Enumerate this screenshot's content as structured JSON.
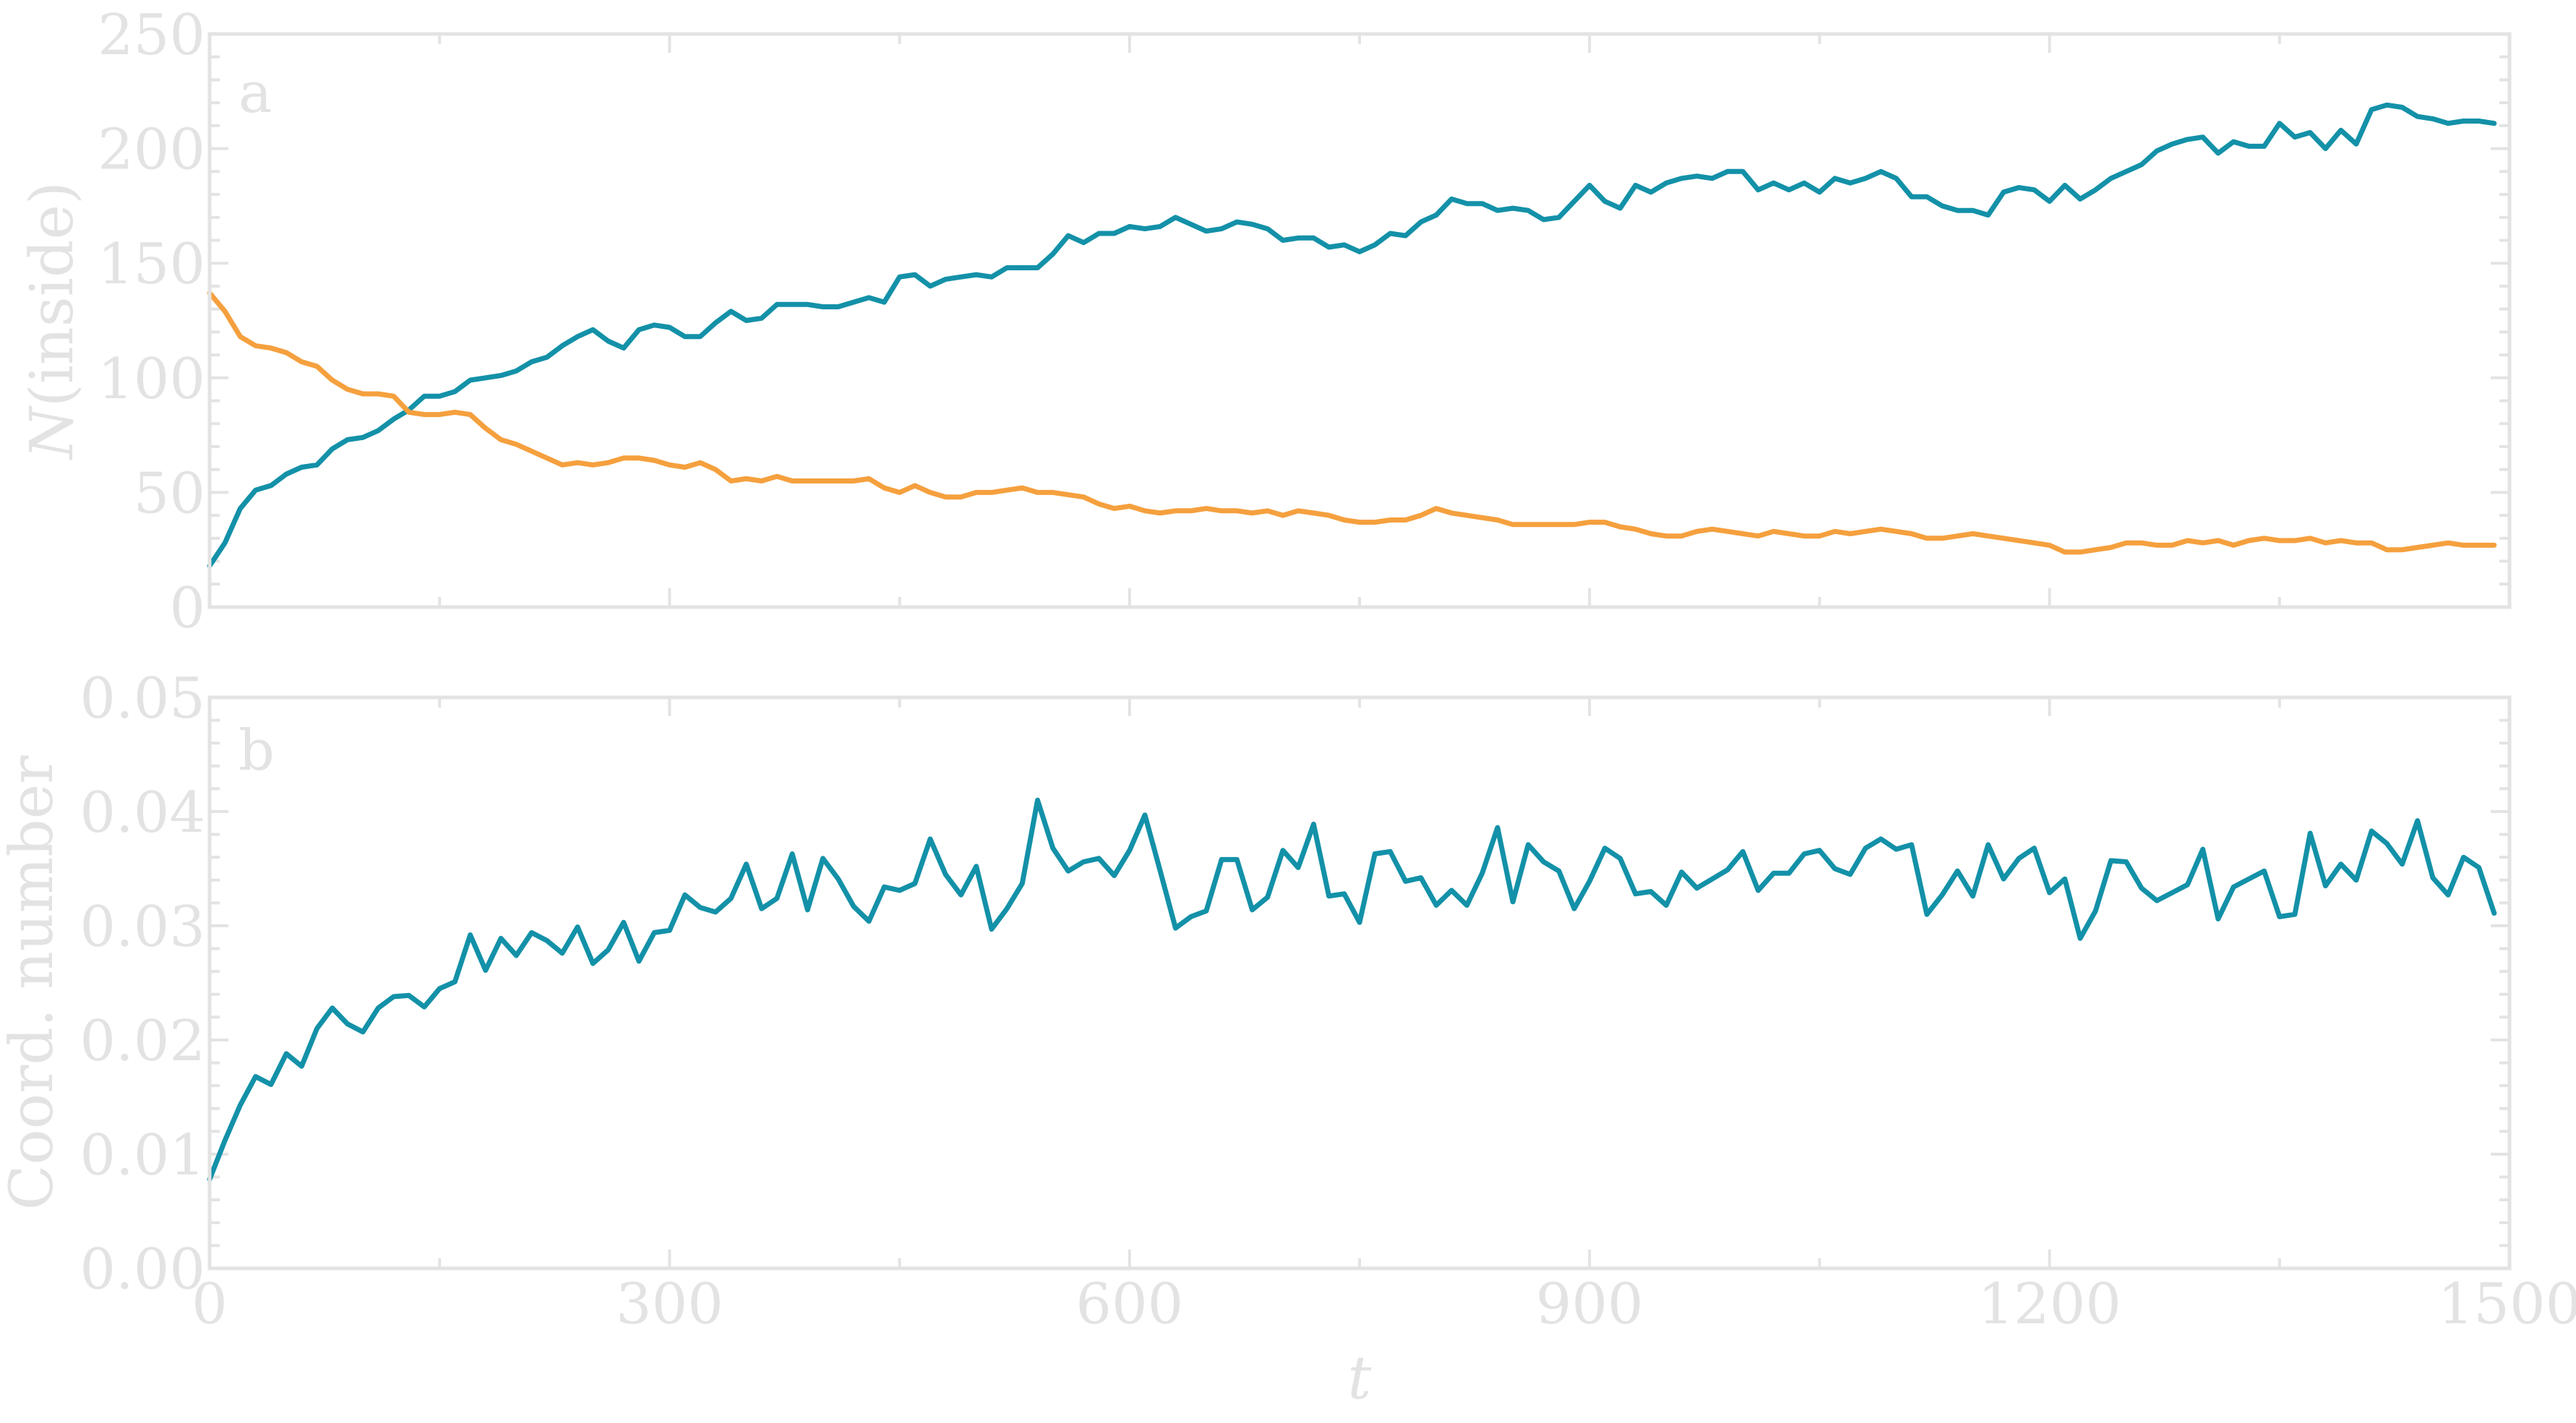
{
  "colors": {
    "axis": "#e3e3e3",
    "teal": "#1391a8",
    "orange": "#f5a03e"
  },
  "chart_data": [
    {
      "panel": "a",
      "type": "line",
      "xlabel": "",
      "ylabel": "N(inside)",
      "xlim": [
        0,
        1500
      ],
      "ylim": [
        0,
        250
      ],
      "xticks": [
        0,
        300,
        600,
        900,
        1200,
        1500
      ],
      "yticks": [
        0,
        50,
        100,
        150,
        200,
        250
      ],
      "ytick_labels": [
        "0",
        "50",
        "100",
        "150",
        "200",
        "250"
      ],
      "xtick_labels_visible": false,
      "series": [
        {
          "color": "#1391a8",
          "x": [
            0,
            10,
            20,
            30,
            40,
            50,
            60,
            70,
            80,
            90,
            100,
            110,
            120,
            130,
            140,
            150,
            160,
            170,
            180,
            190,
            200,
            210,
            220,
            230,
            240,
            250,
            260,
            270,
            280,
            290,
            300,
            310,
            320,
            330,
            340,
            350,
            360,
            370,
            380,
            390,
            400,
            410,
            420,
            430,
            440,
            450,
            460,
            470,
            480,
            490,
            500,
            510,
            520,
            530,
            540,
            550,
            560,
            570,
            580,
            590,
            600,
            610,
            620,
            630,
            640,
            650,
            660,
            670,
            680,
            690,
            700,
            710,
            720,
            730,
            740,
            750,
            760,
            770,
            780,
            790,
            800,
            810,
            820,
            830,
            840,
            850,
            860,
            870,
            880,
            890,
            900,
            910,
            920,
            930,
            940,
            950,
            960,
            970,
            980,
            990,
            1000,
            1010,
            1020,
            1030,
            1040,
            1050,
            1060,
            1070,
            1080,
            1090,
            1100,
            1110,
            1120,
            1130,
            1140,
            1150,
            1160,
            1170,
            1180,
            1190,
            1200,
            1210,
            1220,
            1230,
            1240,
            1250,
            1260,
            1270,
            1280,
            1290,
            1300,
            1310,
            1320,
            1330,
            1340,
            1350,
            1360,
            1370,
            1380,
            1390,
            1400,
            1410,
            1420,
            1430,
            1440,
            1450,
            1460,
            1470,
            1480,
            1490
          ],
          "y": [
            18,
            28,
            43,
            51,
            53,
            58,
            61,
            62,
            69,
            73,
            74,
            77,
            82,
            86,
            92,
            92,
            94,
            99,
            100,
            101,
            103,
            107,
            109,
            114,
            118,
            121,
            116,
            113,
            121,
            123,
            122,
            118,
            118,
            124,
            129,
            125,
            126,
            132,
            132,
            132,
            131,
            131,
            133,
            135,
            133,
            144,
            145,
            140,
            143,
            144,
            145,
            144,
            148,
            148,
            148,
            154,
            162,
            159,
            163,
            163,
            166,
            165,
            166,
            170,
            167,
            164,
            165,
            168,
            167,
            165,
            160,
            161,
            161,
            157,
            158,
            155,
            158,
            163,
            162,
            168,
            171,
            178,
            176,
            176,
            173,
            174,
            173,
            169,
            170,
            177,
            184,
            177,
            174,
            184,
            181,
            185,
            187,
            188,
            187,
            190,
            190,
            182,
            185,
            182,
            185,
            181,
            187,
            185,
            187,
            190,
            187,
            179,
            179,
            175,
            173,
            173,
            171,
            181,
            183,
            182,
            177,
            184,
            178,
            182,
            187,
            190,
            193,
            199,
            202,
            204,
            205,
            198,
            203,
            201,
            201,
            211,
            205,
            207,
            200,
            208,
            202,
            217,
            219,
            218,
            214,
            213,
            211,
            212,
            212,
            211
          ]
        },
        {
          "color": "#f5a03e",
          "x": [
            0,
            10,
            20,
            30,
            40,
            50,
            60,
            70,
            80,
            90,
            100,
            110,
            120,
            130,
            140,
            150,
            160,
            170,
            180,
            190,
            200,
            210,
            220,
            230,
            240,
            250,
            260,
            270,
            280,
            290,
            300,
            310,
            320,
            330,
            340,
            350,
            360,
            370,
            380,
            390,
            400,
            410,
            420,
            430,
            440,
            450,
            460,
            470,
            480,
            490,
            500,
            510,
            520,
            530,
            540,
            550,
            560,
            570,
            580,
            590,
            600,
            610,
            620,
            630,
            640,
            650,
            660,
            670,
            680,
            690,
            700,
            710,
            720,
            730,
            740,
            750,
            760,
            770,
            780,
            790,
            800,
            810,
            820,
            830,
            840,
            850,
            860,
            870,
            880,
            890,
            900,
            910,
            920,
            930,
            940,
            950,
            960,
            970,
            980,
            990,
            1000,
            1010,
            1020,
            1030,
            1040,
            1050,
            1060,
            1070,
            1080,
            1090,
            1100,
            1110,
            1120,
            1130,
            1140,
            1150,
            1160,
            1170,
            1180,
            1190,
            1200,
            1210,
            1220,
            1230,
            1240,
            1250,
            1260,
            1270,
            1280,
            1290,
            1300,
            1310,
            1320,
            1330,
            1340,
            1350,
            1360,
            1370,
            1380,
            1390,
            1400,
            1410,
            1420,
            1430,
            1440,
            1450,
            1460,
            1470,
            1480,
            1490
          ],
          "y": [
            137,
            129,
            118,
            114,
            113,
            111,
            107,
            105,
            99,
            95,
            93,
            93,
            92,
            85,
            84,
            84,
            85,
            84,
            78,
            73,
            71,
            68,
            65,
            62,
            63,
            62,
            63,
            65,
            65,
            64,
            62,
            61,
            63,
            60,
            55,
            56,
            55,
            57,
            55,
            55,
            55,
            55,
            55,
            56,
            52,
            50,
            53,
            50,
            48,
            48,
            50,
            50,
            51,
            52,
            50,
            50,
            49,
            48,
            45,
            43,
            44,
            42,
            41,
            42,
            42,
            43,
            42,
            42,
            41,
            42,
            40,
            42,
            41,
            40,
            38,
            37,
            37,
            38,
            38,
            40,
            43,
            41,
            40,
            39,
            38,
            36,
            36,
            36,
            36,
            36,
            37,
            37,
            35,
            34,
            32,
            31,
            31,
            33,
            34,
            33,
            32,
            31,
            33,
            32,
            31,
            31,
            33,
            32,
            33,
            34,
            33,
            32,
            30,
            30,
            31,
            32,
            31,
            30,
            29,
            28,
            27,
            24,
            24,
            25,
            26,
            28,
            28,
            27,
            27,
            29,
            28,
            29,
            27,
            29,
            30,
            29,
            29,
            30,
            28,
            29,
            28,
            28,
            25,
            25,
            26,
            27,
            28,
            27,
            27,
            27
          ]
        }
      ]
    },
    {
      "panel": "b",
      "type": "line",
      "xlabel": "t",
      "ylabel": "Coord. number",
      "xlim": [
        0,
        1500
      ],
      "ylim": [
        0,
        0.05
      ],
      "xticks": [
        0,
        300,
        600,
        900,
        1200,
        1500
      ],
      "xtick_labels": [
        "0",
        "300",
        "600",
        "900",
        "1200",
        "1500"
      ],
      "yticks": [
        0,
        0.01,
        0.02,
        0.03,
        0.04,
        0.05
      ],
      "ytick_labels": [
        "0.00",
        "0.01",
        "0.02",
        "0.03",
        "0.04",
        "0.05"
      ],
      "series": [
        {
          "color": "#1391a8",
          "x": [
            0,
            10,
            20,
            30,
            40,
            50,
            60,
            70,
            80,
            90,
            100,
            110,
            120,
            130,
            140,
            150,
            160,
            170,
            180,
            190,
            200,
            210,
            220,
            230,
            240,
            250,
            260,
            270,
            280,
            290,
            300,
            310,
            320,
            330,
            340,
            350,
            360,
            370,
            380,
            390,
            400,
            410,
            420,
            430,
            440,
            450,
            460,
            470,
            480,
            490,
            500,
            510,
            520,
            530,
            540,
            550,
            560,
            570,
            580,
            590,
            600,
            610,
            620,
            630,
            640,
            650,
            660,
            670,
            680,
            690,
            700,
            710,
            720,
            730,
            740,
            750,
            760,
            770,
            780,
            790,
            800,
            810,
            820,
            830,
            840,
            850,
            860,
            870,
            880,
            890,
            900,
            910,
            920,
            930,
            940,
            950,
            960,
            970,
            980,
            990,
            1000,
            1010,
            1020,
            1030,
            1040,
            1050,
            1060,
            1070,
            1080,
            1090,
            1100,
            1110,
            1120,
            1130,
            1140,
            1150,
            1160,
            1170,
            1180,
            1190,
            1200,
            1210,
            1220,
            1230,
            1240,
            1250,
            1260,
            1270,
            1280,
            1290,
            1300,
            1310,
            1320,
            1330,
            1340,
            1350,
            1360,
            1370,
            1380,
            1390,
            1400,
            1410,
            1420,
            1430,
            1440,
            1450,
            1460,
            1470,
            1480,
            1490
          ],
          "y": [
            0.0078,
            0.0112,
            0.0143,
            0.0168,
            0.0161,
            0.0188,
            0.0177,
            0.021,
            0.0228,
            0.0214,
            0.0207,
            0.0228,
            0.0238,
            0.0239,
            0.0229,
            0.0245,
            0.0251,
            0.0292,
            0.0261,
            0.0289,
            0.0274,
            0.0294,
            0.0287,
            0.0276,
            0.0299,
            0.0267,
            0.0279,
            0.0303,
            0.0269,
            0.0294,
            0.0296,
            0.0327,
            0.0316,
            0.0312,
            0.0324,
            0.0354,
            0.0315,
            0.0324,
            0.0363,
            0.0314,
            0.0359,
            0.0341,
            0.0317,
            0.0304,
            0.0334,
            0.0331,
            0.0337,
            0.0376,
            0.0345,
            0.0327,
            0.0352,
            0.0297,
            0.0315,
            0.0337,
            0.041,
            0.0368,
            0.0348,
            0.0356,
            0.0359,
            0.0344,
            0.0366,
            0.0397,
            0.0348,
            0.0298,
            0.0308,
            0.0313,
            0.0358,
            0.0358,
            0.0314,
            0.0325,
            0.0366,
            0.0351,
            0.0389,
            0.0326,
            0.0328,
            0.0303,
            0.0363,
            0.0365,
            0.0339,
            0.0342,
            0.0318,
            0.0331,
            0.0318,
            0.0346,
            0.0386,
            0.0321,
            0.0371,
            0.0356,
            0.0348,
            0.0315,
            0.0339,
            0.0368,
            0.0359,
            0.0328,
            0.033,
            0.0318,
            0.0347,
            0.0333,
            0.0341,
            0.0349,
            0.0365,
            0.0331,
            0.0346,
            0.0346,
            0.0363,
            0.0366,
            0.035,
            0.0345,
            0.0368,
            0.0376,
            0.0367,
            0.0371,
            0.031,
            0.0327,
            0.0348,
            0.0326,
            0.0371,
            0.0341,
            0.0359,
            0.0368,
            0.0329,
            0.0341,
            0.0289,
            0.0313,
            0.0357,
            0.0356,
            0.0333,
            0.0322,
            0.0329,
            0.0336,
            0.0367,
            0.0306,
            0.0334,
            0.0341,
            0.0348,
            0.0308,
            0.031,
            0.0381,
            0.0335,
            0.0354,
            0.034,
            0.0383,
            0.0372,
            0.0354,
            0.0392,
            0.0342,
            0.0327,
            0.036,
            0.0351,
            0.0311
          ]
        }
      ]
    }
  ]
}
